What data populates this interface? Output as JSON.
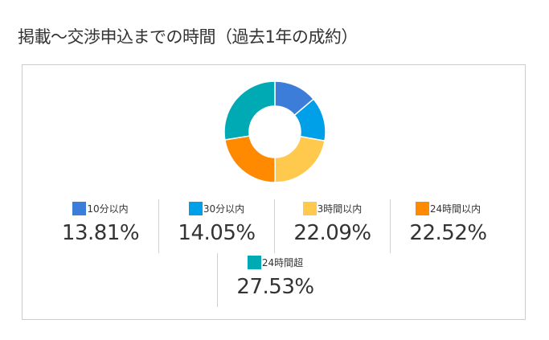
{
  "header": {
    "title": "掲載〜交渉申込までの時間（過去1年の成約）"
  },
  "chart_data": {
    "type": "pie",
    "subtype": "donut",
    "title": "掲載〜交渉申込までの時間（過去1年の成約）",
    "categories": [
      "10分以内",
      "30分以内",
      "3時間以内",
      "24時間以内",
      "24時間超"
    ],
    "values": [
      13.81,
      14.05,
      22.09,
      22.52,
      27.53
    ],
    "unit": "%",
    "colors": [
      "#3c7dd9",
      "#00a0e9",
      "#ffc94e",
      "#ff8a00",
      "#00aab4"
    ],
    "legend_position": "bottom"
  },
  "legend": [
    {
      "label": "10分以内",
      "value": "13.81%",
      "color": "#3c7dd9"
    },
    {
      "label": "30分以内",
      "value": "14.05%",
      "color": "#00a0e9"
    },
    {
      "label": "3時間以内",
      "value": "22.09%",
      "color": "#ffc94e"
    },
    {
      "label": "24時間以内",
      "value": "22.52%",
      "color": "#ff8a00"
    },
    {
      "label": "24時間超",
      "value": "27.53%",
      "color": "#00aab4"
    }
  ]
}
